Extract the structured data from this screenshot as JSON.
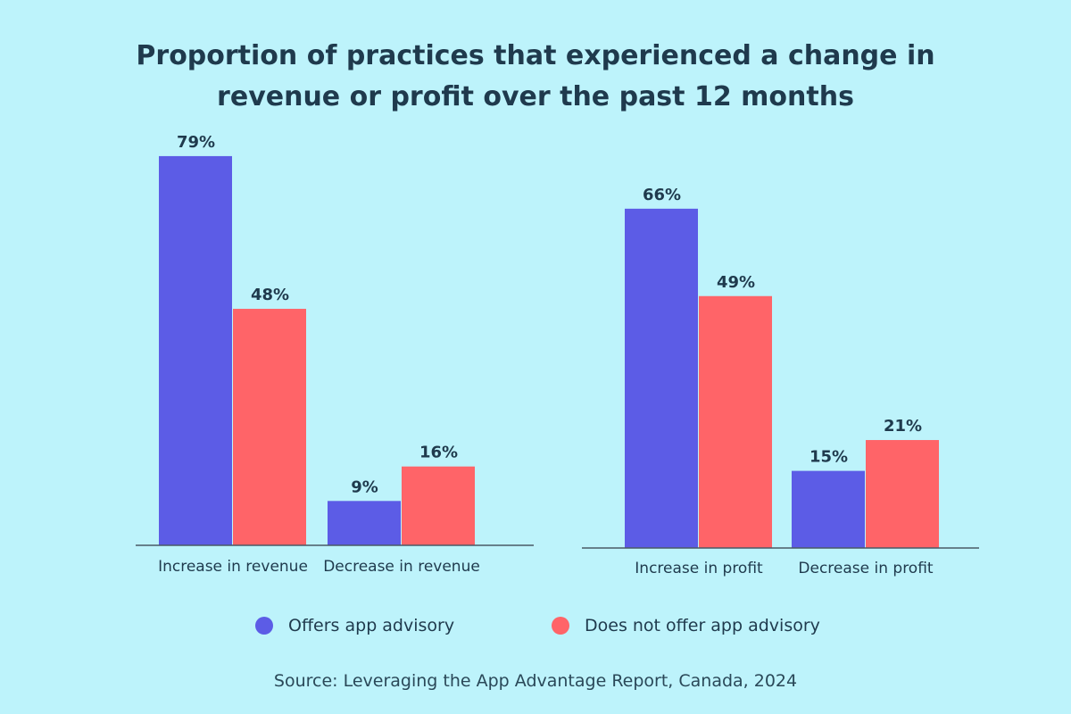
{
  "title_lines": [
    "Proportion of practices that experienced a change in",
    "revenue or profit over the past 12 months"
  ],
  "source": "Source: Leveraging the App Advantage Report, Canada, 2024",
  "colors": {
    "offers": "#5c5ce6",
    "not_offers": "#ff6468",
    "background": "#bdf3fb",
    "text": "#1f3a4d",
    "axis": "#4a5a66"
  },
  "legend": [
    {
      "label": "Offers app advisory",
      "color": "#5c5ce6"
    },
    {
      "label": "Does not offer app advisory",
      "color": "#ff6468"
    }
  ],
  "chart_data": [
    {
      "type": "bar",
      "title": "Proportion of practices that experienced a change in revenue or profit over the past 12 months",
      "categories": [
        "Increase in revenue",
        "Decrease in revenue"
      ],
      "series": [
        {
          "name": "Offers app advisory",
          "values": [
            79,
            9
          ],
          "labels": [
            "79%",
            "9%"
          ]
        },
        {
          "name": "Does not offer app advisory",
          "values": [
            48,
            16
          ],
          "labels": [
            "48%",
            "16%"
          ]
        }
      ],
      "ylim": [
        0,
        100
      ],
      "unit": "%"
    },
    {
      "type": "bar",
      "title": "Proportion of practices that experienced a change in revenue or profit over the past 12 months",
      "categories": [
        "Increase in profit",
        "Decrease in profit"
      ],
      "series": [
        {
          "name": "Offers app advisory",
          "values": [
            66,
            15
          ],
          "labels": [
            "66%",
            "15%"
          ]
        },
        {
          "name": "Does not offer app advisory",
          "values": [
            49,
            21
          ],
          "labels": [
            "49%",
            "21%"
          ]
        }
      ],
      "ylim": [
        0,
        100
      ],
      "unit": "%"
    }
  ]
}
